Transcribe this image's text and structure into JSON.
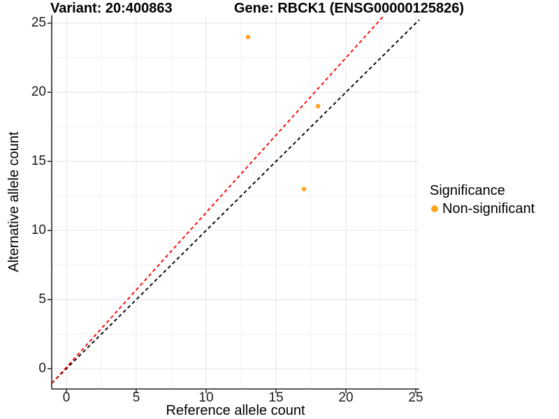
{
  "header": {
    "title_left": "Variant: 20:400863",
    "title_right": "Gene: RBCK1 (ENSG00000125826)"
  },
  "legend": {
    "title": "Significance",
    "items": [
      {
        "label": "Non-significant",
        "color": "#FFA320",
        "marker": "circle-icon"
      }
    ]
  },
  "chart_data": {
    "type": "scatter",
    "title": "Variant: 20:400863    Gene: RBCK1 (ENSG00000125826)",
    "xlabel": "Reference allele count",
    "ylabel": "Alternative allele count",
    "xlim": [
      -1.05,
      25.25
    ],
    "ylim": [
      -1.47,
      25.57
    ],
    "x_ticks": [
      0,
      5,
      10,
      15,
      20,
      25
    ],
    "y_ticks": [
      0,
      5,
      10,
      15,
      20,
      25
    ],
    "grid": "major+minor",
    "legend_position": "right",
    "legend_title": "Significance",
    "series": [
      {
        "name": "Non-significant",
        "color": "#FFA320",
        "marker": "dot",
        "points": [
          [
            13,
            24
          ],
          [
            18,
            19
          ],
          [
            17,
            13
          ]
        ]
      }
    ],
    "reference_lines": [
      {
        "name": "identity-line",
        "color": "#000000",
        "style": "dashed",
        "slope": 1.0,
        "intercept": 0.0
      },
      {
        "name": "expected-ratio-line",
        "color": "#FF0000",
        "style": "dashed",
        "slope": 1.12,
        "intercept": 0.1
      }
    ],
    "colors": {
      "grid_major": "#E4E4E4",
      "grid_minor": "#F2F2F2",
      "axis": "#404040",
      "text": "#000000"
    }
  }
}
